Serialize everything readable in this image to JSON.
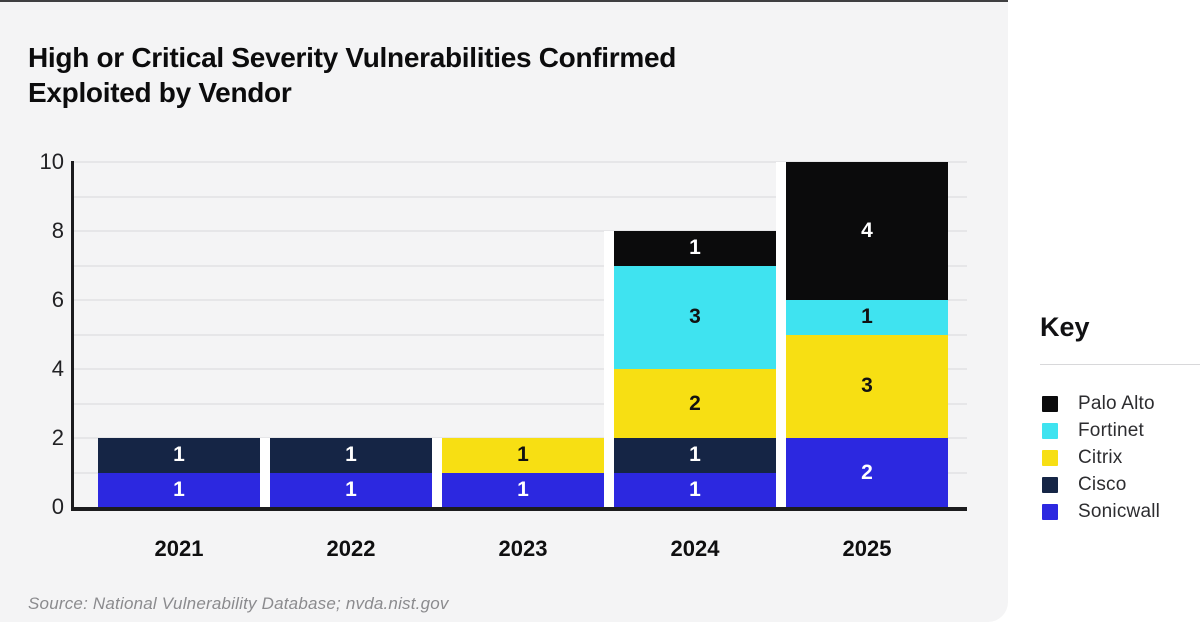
{
  "title": {
    "line1": "High or Critical Severity Vulnerabilities Confirmed",
    "line2": "Exploited by Vendor"
  },
  "source": "Source: National Vulnerability Database; nvda.nist.gov",
  "legend": {
    "title": "Key",
    "position": "right"
  },
  "colors": {
    "card_background": "#f4f4f5",
    "card_top_border": "#3f3f41",
    "gridline": "#e6e6e8",
    "axis": "#1c1c1e",
    "bar_gap": "#ffffff"
  },
  "chart_data": {
    "type": "bar",
    "stacked": true,
    "title": "High or Critical Severity Vulnerabilities Confirmed Exploited by Vendor",
    "categories": [
      "2021",
      "2022",
      "2023",
      "2024",
      "2025"
    ],
    "series": [
      {
        "name": "Palo Alto",
        "color": "#0b0b0c",
        "label_color": "#ffffff",
        "values": [
          0,
          0,
          0,
          1,
          4
        ]
      },
      {
        "name": "Fortinet",
        "color": "#3fe3f0",
        "label_color": "#111111",
        "values": [
          0,
          0,
          0,
          3,
          1
        ]
      },
      {
        "name": "Citrix",
        "color": "#f7df13",
        "label_color": "#111111",
        "values": [
          0,
          0,
          1,
          2,
          3
        ]
      },
      {
        "name": "Cisco",
        "color": "#152545",
        "label_color": "#ffffff",
        "values": [
          1,
          1,
          0,
          1,
          0
        ]
      },
      {
        "name": "Sonicwall",
        "color": "#2c28e0",
        "label_color": "#ffffff",
        "values": [
          1,
          1,
          1,
          1,
          2
        ]
      }
    ],
    "totals": [
      2,
      2,
      2,
      8,
      10
    ],
    "ylim": [
      0,
      10
    ],
    "yticks": [
      0,
      2,
      4,
      6,
      8,
      10
    ],
    "gridlines_every": 1,
    "grid": "horizontal",
    "legend_title": "Key",
    "legend_entries": [
      "Palo Alto",
      "Fortinet",
      "Citrix",
      "Cisco",
      "Sonicwall"
    ],
    "xlabel": "",
    "ylabel": ""
  }
}
